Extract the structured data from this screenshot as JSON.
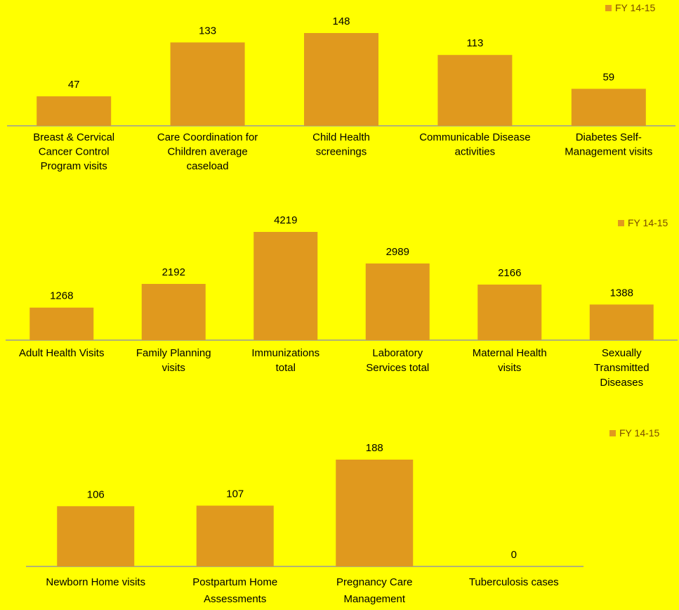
{
  "colors": {
    "background": "#FFFF00",
    "bar": "#E0991E",
    "axis": "#9a9a9a",
    "legend_text": "#7a4c00"
  },
  "chart_data": [
    {
      "type": "bar",
      "legend": "FY 14-15",
      "legend_position": "top-right",
      "categories": [
        "Breast & Cervical Cancer Control Program visits",
        "Care Coordination for Children average caseload",
        "Child Health screenings",
        "Communicable Disease activities",
        "Diabetes Self-Management visits"
      ],
      "category_lines": [
        [
          "Breast & Cervical",
          "Cancer Control",
          "Program visits"
        ],
        [
          "Care Coordination for",
          "Children average",
          "caseload"
        ],
        [
          "Child Health",
          "screenings"
        ],
        [
          "Communicable Disease",
          "activities"
        ],
        [
          "Diabetes Self-",
          "Management visits"
        ]
      ],
      "series": [
        {
          "name": "FY 14-15",
          "values": [
            47,
            133,
            148,
            113,
            59
          ]
        }
      ]
    },
    {
      "type": "bar",
      "legend": "FY 14-15",
      "legend_position": "top-right",
      "categories": [
        "Adult Health Visits",
        "Family Planning visits",
        "Immunizations total",
        "Laboratory Services total",
        "Maternal Health visits",
        "Sexually Transmitted Diseases"
      ],
      "category_lines": [
        [
          "Adult Health Visits"
        ],
        [
          "Family Planning",
          "visits"
        ],
        [
          "Immunizations",
          "total"
        ],
        [
          "Laboratory",
          "Services total"
        ],
        [
          "Maternal Health",
          "visits"
        ],
        [
          "Sexually",
          "Transmitted",
          "Diseases"
        ]
      ],
      "series": [
        {
          "name": "FY 14-15",
          "values": [
            1268,
            2192,
            4219,
            2989,
            2166,
            1388
          ]
        }
      ]
    },
    {
      "type": "bar",
      "legend": "FY 14-15",
      "legend_position": "top-right",
      "categories": [
        "Newborn Home visits",
        "Postpartum Home Assessments",
        "Pregnancy Care Management",
        "Tuberculosis cases"
      ],
      "category_lines": [
        [
          "Newborn Home visits"
        ],
        [
          "Postpartum Home",
          "Assessments"
        ],
        [
          "Pregnancy Care",
          "Management"
        ],
        [
          "Tuberculosis cases"
        ]
      ],
      "series": [
        {
          "name": "FY 14-15",
          "values": [
            106,
            107,
            188,
            0
          ]
        }
      ]
    }
  ]
}
